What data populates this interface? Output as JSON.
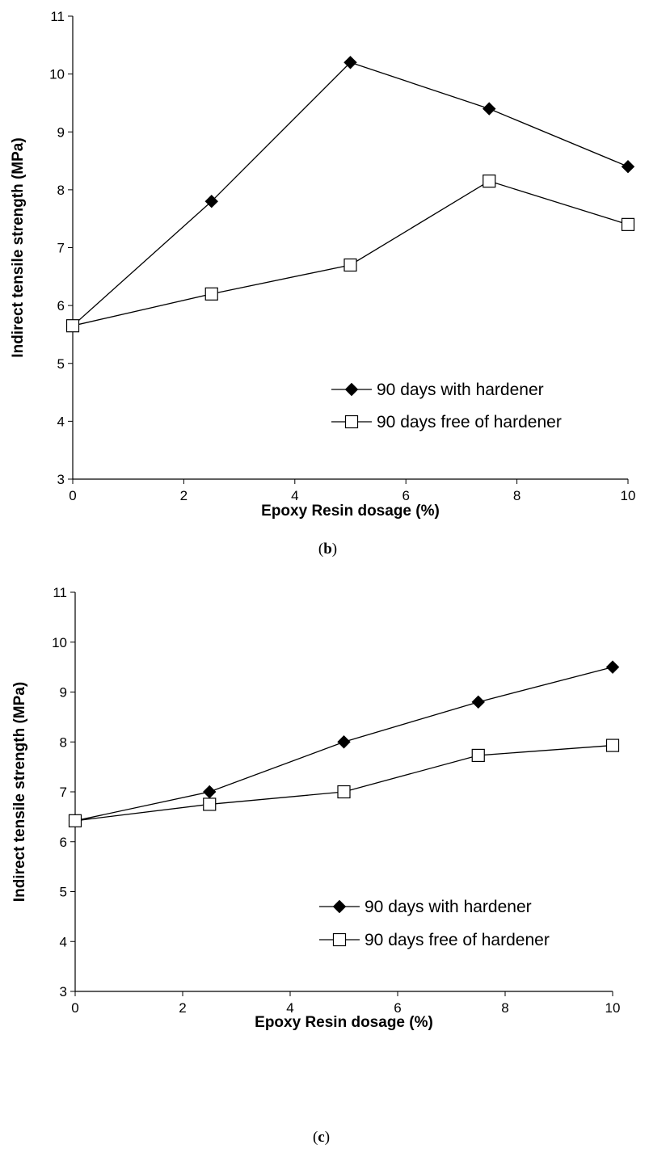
{
  "chart_data": [
    {
      "type": "line",
      "panel": "b",
      "caption_open": "(",
      "caption_letter": "b",
      "caption_close": ")",
      "xlabel": "Epoxy Resin dosage (%)",
      "ylabel": "Indirect tensile strength (MPa)",
      "xlim": [
        0,
        10
      ],
      "ylim": [
        3,
        11
      ],
      "xticks": [
        0,
        2,
        4,
        6,
        8,
        10
      ],
      "yticks": [
        3,
        4,
        5,
        6,
        7,
        8,
        9,
        10,
        11
      ],
      "grid": false,
      "legend_position": "bottom-right",
      "series": [
        {
          "name": "90 days with hardener",
          "marker": "filled-diamond",
          "x": [
            0,
            2.5,
            5,
            7.5,
            10
          ],
          "y": [
            5.65,
            7.8,
            10.2,
            9.4,
            8.4
          ]
        },
        {
          "name": "90 days free of hardener",
          "marker": "open-square",
          "x": [
            0,
            2.5,
            5,
            7.5,
            10
          ],
          "y": [
            5.65,
            6.2,
            6.7,
            8.15,
            7.4
          ]
        }
      ]
    },
    {
      "type": "line",
      "panel": "c",
      "caption_open": "(",
      "caption_letter": "c",
      "caption_close": ")",
      "xlabel": "Epoxy Resin dosage (%)",
      "ylabel": "Indirect tensile strength (MPa)",
      "xlim": [
        0,
        10
      ],
      "ylim": [
        3,
        11
      ],
      "xticks": [
        0,
        2,
        4,
        6,
        8,
        10
      ],
      "yticks": [
        3,
        4,
        5,
        6,
        7,
        8,
        9,
        10,
        11
      ],
      "grid": false,
      "legend_position": "bottom-right",
      "series": [
        {
          "name": "90 days with hardener",
          "marker": "filled-diamond",
          "x": [
            0,
            2.5,
            5,
            7.5,
            10
          ],
          "y": [
            6.42,
            7.0,
            8.0,
            8.8,
            9.5
          ]
        },
        {
          "name": "90 days free of hardener",
          "marker": "open-square",
          "x": [
            0,
            2.5,
            5,
            7.5,
            10
          ],
          "y": [
            6.42,
            6.75,
            7.0,
            7.73,
            7.93
          ]
        }
      ]
    }
  ]
}
